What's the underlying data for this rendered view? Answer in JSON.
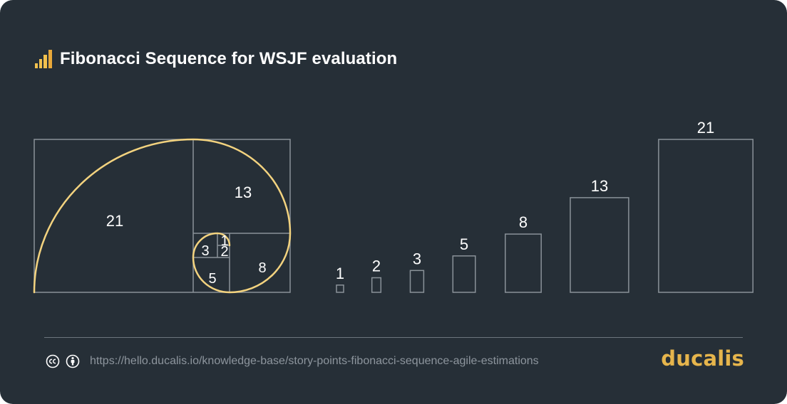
{
  "title": "Fibonacci Sequence for WSJF evaluation",
  "spiral_labels": {
    "s21": "21",
    "s13": "13",
    "s8": "8",
    "s5": "5",
    "s3": "3",
    "s2": "2",
    "s1": "1"
  },
  "chart_data": {
    "type": "bar",
    "categories": [
      "1",
      "2",
      "3",
      "5",
      "8",
      "13",
      "21"
    ],
    "values": [
      1,
      2,
      3,
      5,
      8,
      13,
      21
    ],
    "title": "",
    "xlabel": "",
    "ylabel": "",
    "ylim": [
      0,
      21
    ],
    "grid": false
  },
  "footer": {
    "url": "https://hello.ducalis.io/knowledge-base/story-points-fibonacci-sequence-agile-estimations",
    "brand": "ducalis"
  },
  "colors": {
    "background": "#262f37",
    "outline": "#8a9299",
    "spiral": "#f3d37f",
    "brand": "#e6b54c"
  },
  "icons": {
    "title": "bar-chart-icon",
    "license_cc": "creative-commons-icon",
    "license_by": "attribution-icon"
  }
}
